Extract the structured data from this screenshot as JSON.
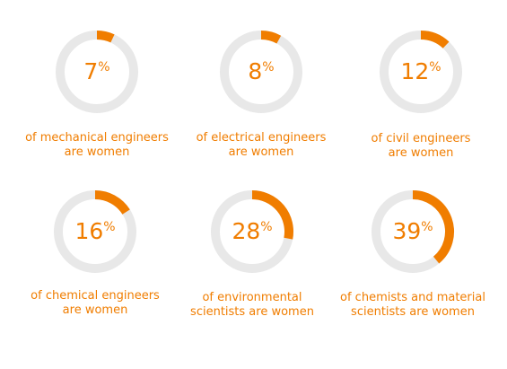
{
  "colors": {
    "accent": "#f07d00",
    "track": "#e8e8e8"
  },
  "chart_data": {
    "type": "pie",
    "unit_symbol": "%",
    "items": [
      {
        "value": 7,
        "label_line1": "of mechanical engineers",
        "label_line2": "are women"
      },
      {
        "value": 8,
        "label_line1": "of electrical engineers",
        "label_line2": "are women"
      },
      {
        "value": 12,
        "label_line1": "of civil engineers",
        "label_line2": "are women"
      },
      {
        "value": 16,
        "label_line1": "of chemical engineers",
        "label_line2": "are women"
      },
      {
        "value": 28,
        "label_line1": "of environmental",
        "label_line2": "scientists are women"
      },
      {
        "value": 39,
        "label_line1": "of chemists and material",
        "label_line2": "scientists are women"
      }
    ]
  }
}
